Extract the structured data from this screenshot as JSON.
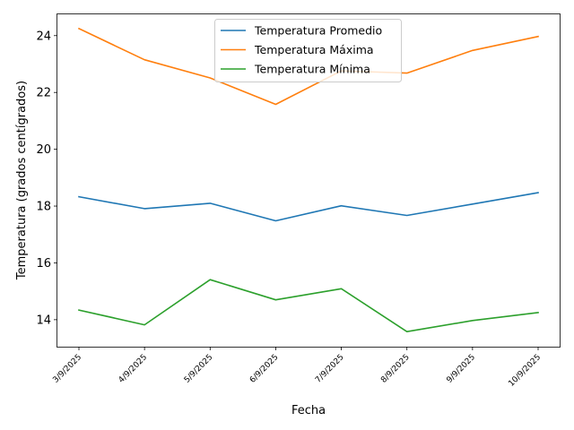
{
  "chart_data": {
    "type": "line",
    "title": "",
    "xlabel": "Fecha",
    "ylabel": "Temperatura (grados centígrados)",
    "categories": [
      "3/9/2025",
      "4/9/2025",
      "5/9/2025",
      "6/9/2025",
      "7/9/2025",
      "8/9/2025",
      "9/9/2025",
      "10/9/2025"
    ],
    "ylim": [
      13.05,
      24.75
    ],
    "yticks": [
      14,
      16,
      18,
      20,
      22,
      24
    ],
    "grid": false,
    "legend_position": "upper-center",
    "series": [
      {
        "name": "Temperatura Promedio",
        "color": "#1f77b4",
        "values": [
          18.33,
          17.91,
          18.1,
          17.48,
          18.01,
          17.67,
          18.07,
          18.47
        ]
      },
      {
        "name": "Temperatura Máxima",
        "color": "#ff7f0e",
        "values": [
          24.25,
          23.15,
          22.51,
          21.58,
          22.76,
          22.68,
          23.48,
          23.97
        ]
      },
      {
        "name": "Temperatura Mínima",
        "color": "#2ca02c",
        "values": [
          14.34,
          13.82,
          15.41,
          14.7,
          15.09,
          13.58,
          13.97,
          14.25
        ]
      }
    ]
  }
}
